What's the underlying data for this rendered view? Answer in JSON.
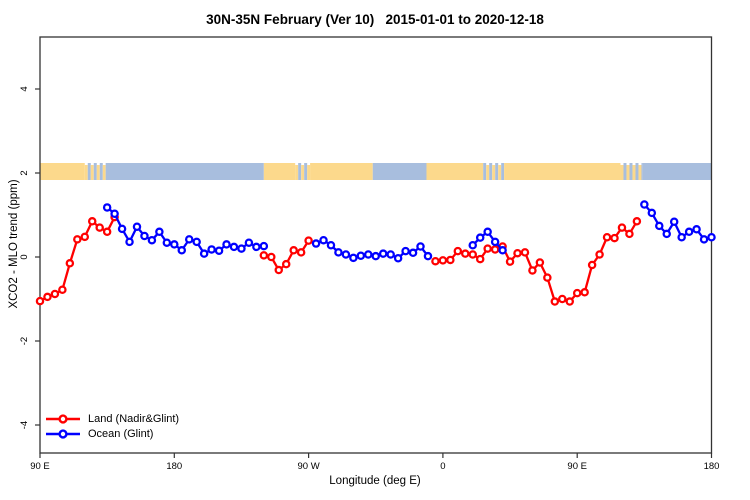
{
  "title": "30N-35N February (Ver 10)   2015-01-01 to 2020-12-18",
  "legend": {
    "land": "Land (Nadir&Glint)",
    "ocean": "Ocean (Glint)"
  },
  "colors": {
    "land_series": "#ff0000",
    "ocean_series": "#0000ff",
    "strip_ocean": "#a8bede",
    "strip_land": "#fcd98c",
    "axis": "#333333",
    "text": "#000000"
  },
  "chart_data": {
    "type": "line",
    "title": "30N-35N February (Ver 10)   2015-01-01 to 2020-12-18",
    "x_axis": {
      "label": "Longitude (deg E)",
      "start": "90 E",
      "span_deg": 450,
      "ticks": [
        {
          "offset": 0,
          "label": "90 E"
        },
        {
          "offset": 90,
          "label": "180"
        },
        {
          "offset": 180,
          "label": "90 W"
        },
        {
          "offset": 270,
          "label": "0"
        },
        {
          "offset": 360,
          "label": "90 E"
        },
        {
          "offset": 450,
          "label": "180"
        }
      ]
    },
    "y_axis": {
      "label": "XCO2 - MLO trend (ppm)",
      "ticks": [
        {
          "value": -4,
          "label": "-4"
        },
        {
          "value": -2,
          "label": "-2"
        },
        {
          "value": 0,
          "label": "0"
        },
        {
          "value": 2,
          "label": "2"
        },
        {
          "value": 4,
          "label": "4"
        }
      ],
      "ylim": [
        -4.7,
        5.2
      ],
      "grid": false
    },
    "legend_position": "bottom-left",
    "map_strip": {
      "description": "land/ocean map band for 30N-35N plotted near y=2",
      "value_top": 2.24,
      "value_bottom": 1.83,
      "ocean_color": "#a8bede",
      "land_color": "#fcd98c",
      "segments": [
        {
          "from": 0,
          "to": 30,
          "type": "land"
        },
        {
          "from": 30,
          "to": 44,
          "type": "mix"
        },
        {
          "from": 44,
          "to": 150,
          "type": "ocean"
        },
        {
          "from": 150,
          "to": 171,
          "type": "land"
        },
        {
          "from": 171,
          "to": 181,
          "type": "mix"
        },
        {
          "from": 181,
          "to": 223,
          "type": "land"
        },
        {
          "from": 223,
          "to": 259,
          "type": "ocean"
        },
        {
          "from": 259,
          "to": 297,
          "type": "land"
        },
        {
          "from": 297,
          "to": 311,
          "type": "mix"
        },
        {
          "from": 311,
          "to": 389,
          "type": "land"
        },
        {
          "from": 389,
          "to": 404,
          "type": "mix"
        },
        {
          "from": 404,
          "to": 450,
          "type": "ocean"
        }
      ]
    },
    "series": [
      {
        "name": "Land (Nadir&Glint)",
        "color": "#ff0000",
        "marker": "open-circle",
        "segments": [
          [
            [
              0,
              -1.05
            ],
            [
              5,
              -0.95
            ],
            [
              10,
              -0.88
            ],
            [
              15,
              -0.78
            ],
            [
              20,
              -0.15
            ],
            [
              25,
              0.42
            ],
            [
              30,
              0.48
            ],
            [
              35,
              0.85
            ],
            [
              40,
              0.7
            ],
            [
              45,
              0.6
            ],
            [
              50,
              0.95
            ]
          ],
          [
            [
              150,
              0.04
            ],
            [
              155,
              0.0
            ],
            [
              160,
              -0.31
            ],
            [
              165,
              -0.17
            ],
            [
              170,
              0.16
            ],
            [
              175,
              0.11
            ],
            [
              180,
              0.39
            ]
          ],
          [
            [
              265,
              -0.1
            ],
            [
              270,
              -0.08
            ],
            [
              275,
              -0.07
            ],
            [
              280,
              0.14
            ],
            [
              285,
              0.08
            ],
            [
              290,
              0.06
            ],
            [
              295,
              -0.05
            ],
            [
              300,
              0.2
            ],
            [
              305,
              0.18
            ],
            [
              310,
              0.25
            ],
            [
              315,
              -0.11
            ],
            [
              320,
              0.09
            ],
            [
              325,
              0.11
            ],
            [
              330,
              -0.32
            ],
            [
              335,
              -0.13
            ],
            [
              340,
              -0.49
            ],
            [
              345,
              -1.06
            ],
            [
              350,
              -1.0
            ],
            [
              355,
              -1.06
            ],
            [
              360,
              -0.86
            ],
            [
              365,
              -0.84
            ],
            [
              370,
              -0.19
            ],
            [
              375,
              0.06
            ],
            [
              380,
              0.47
            ],
            [
              385,
              0.45
            ],
            [
              390,
              0.7
            ],
            [
              395,
              0.55
            ],
            [
              400,
              0.85
            ]
          ]
        ]
      },
      {
        "name": "Ocean (Glint)",
        "color": "#0000ff",
        "marker": "open-circle",
        "segments": [
          [
            [
              45,
              1.18
            ],
            [
              50,
              1.03
            ],
            [
              55,
              0.67
            ],
            [
              60,
              0.36
            ],
            [
              65,
              0.72
            ],
            [
              70,
              0.5
            ],
            [
              75,
              0.4
            ],
            [
              80,
              0.6
            ],
            [
              85,
              0.34
            ],
            [
              90,
              0.3
            ],
            [
              95,
              0.16
            ],
            [
              100,
              0.42
            ],
            [
              105,
              0.36
            ],
            [
              110,
              0.08
            ],
            [
              115,
              0.18
            ],
            [
              120,
              0.15
            ],
            [
              125,
              0.3
            ],
            [
              130,
              0.24
            ],
            [
              135,
              0.2
            ],
            [
              140,
              0.34
            ],
            [
              145,
              0.24
            ],
            [
              150,
              0.26
            ]
          ],
          [
            [
              185,
              0.32
            ],
            [
              190,
              0.4
            ],
            [
              195,
              0.28
            ],
            [
              200,
              0.11
            ],
            [
              205,
              0.06
            ],
            [
              210,
              -0.02
            ],
            [
              215,
              0.03
            ],
            [
              220,
              0.06
            ],
            [
              225,
              0.02
            ],
            [
              230,
              0.08
            ],
            [
              235,
              0.06
            ],
            [
              240,
              -0.03
            ],
            [
              245,
              0.14
            ],
            [
              250,
              0.1
            ],
            [
              255,
              0.25
            ],
            [
              260,
              0.02
            ]
          ],
          [
            [
              290,
              0.28
            ],
            [
              295,
              0.46
            ],
            [
              300,
              0.6
            ],
            [
              305,
              0.36
            ],
            [
              310,
              0.16
            ]
          ],
          [
            [
              405,
              1.25
            ],
            [
              410,
              1.05
            ],
            [
              415,
              0.74
            ],
            [
              420,
              0.55
            ],
            [
              425,
              0.84
            ],
            [
              430,
              0.47
            ],
            [
              435,
              0.6
            ],
            [
              440,
              0.66
            ],
            [
              445,
              0.42
            ],
            [
              450,
              0.47
            ]
          ]
        ]
      }
    ]
  }
}
